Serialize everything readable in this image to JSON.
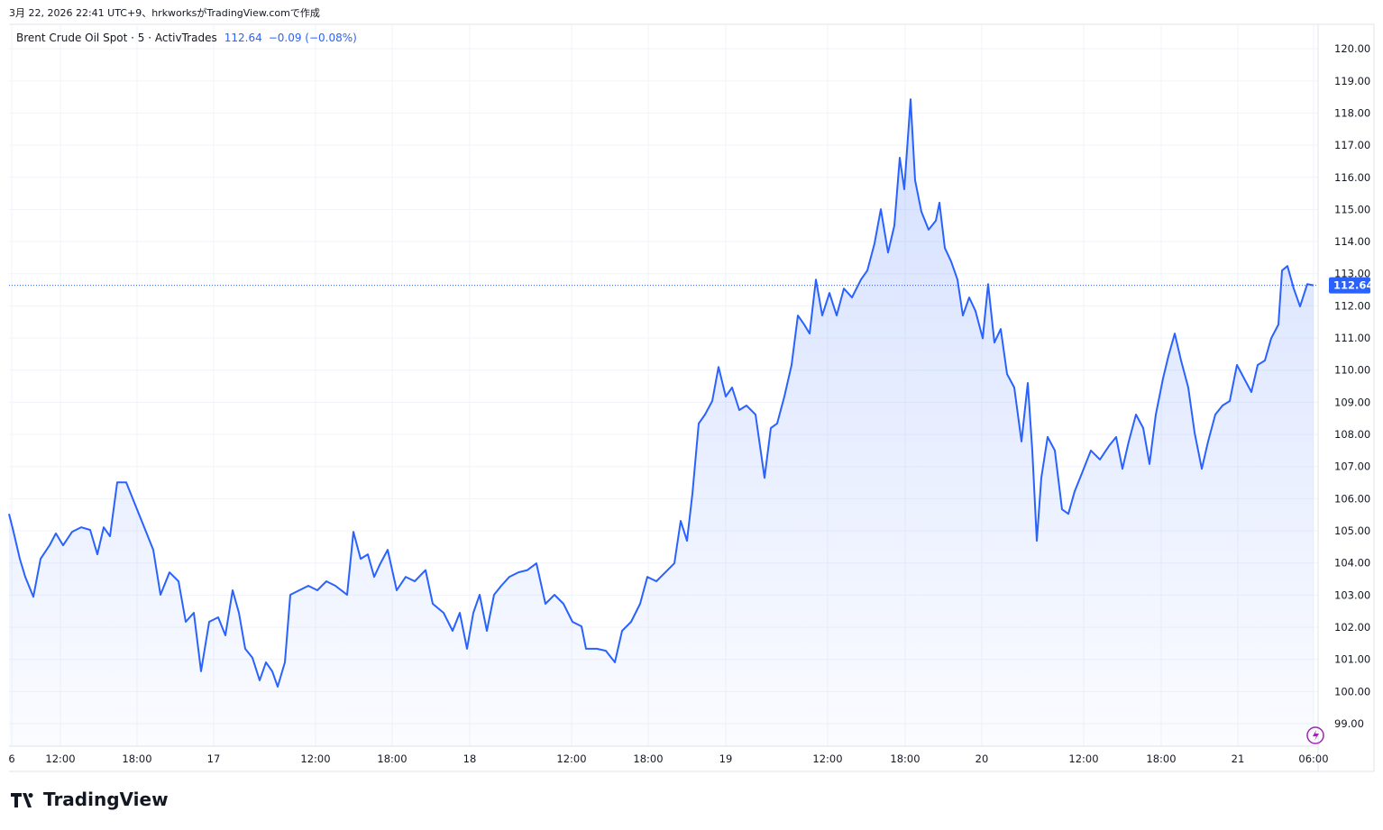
{
  "chart_data": {
    "type": "area",
    "header": "3月 22, 2026 22:41 UTC+9、hrkworksがTradingView.comで作成",
    "title": "Brent Crude Oil Spot · 5 · ActivTrades",
    "last_price": 112.64,
    "change": "−0.09 (−0.08%)",
    "logo": "TradingView",
    "color": "#2962ff",
    "grid": true,
    "x": [
      10,
      15,
      22,
      28,
      37,
      45,
      55,
      62,
      70,
      80,
      90,
      100,
      108,
      115,
      122,
      130,
      140,
      150,
      160,
      170,
      178,
      188,
      198,
      206,
      215,
      223,
      232,
      242,
      250,
      258,
      265,
      272,
      280,
      288,
      295,
      302,
      308,
      316,
      322,
      332,
      342,
      352,
      362,
      372,
      385,
      392,
      400,
      408,
      415,
      422,
      430,
      440,
      450,
      460,
      472,
      480,
      492,
      502,
      510,
      518,
      525,
      532,
      540,
      548,
      556,
      565,
      575,
      585,
      595,
      605,
      615,
      625,
      635,
      645,
      650,
      662,
      672,
      682,
      690,
      700,
      710,
      718,
      728,
      738,
      748,
      755,
      762,
      768,
      775,
      782,
      790,
      797,
      805,
      812,
      820,
      828,
      838,
      848,
      855,
      862,
      870,
      878,
      885,
      892,
      898,
      905,
      912,
      920,
      928,
      936,
      945,
      955,
      962,
      970,
      977,
      985,
      992,
      998,
      1003,
      1010,
      1015,
      1022,
      1030,
      1038,
      1042,
      1048,
      1055,
      1062,
      1068,
      1075,
      1082,
      1090,
      1096,
      1103,
      1110,
      1117,
      1125,
      1133,
      1140,
      1145,
      1150,
      1155,
      1162,
      1170,
      1178,
      1185,
      1192,
      1200,
      1210,
      1220,
      1230,
      1238,
      1245,
      1252,
      1260,
      1268,
      1275,
      1282,
      1290,
      1296,
      1303,
      1310,
      1318,
      1325,
      1333,
      1340,
      1348,
      1356,
      1364,
      1372,
      1380,
      1388,
      1395,
      1403,
      1410,
      1418,
      1422,
      1428,
      1435,
      1442,
      1450,
      1457
    ],
    "values": [
      105.53,
      104.97,
      104.13,
      103.57,
      102.95,
      104.13,
      104.55,
      104.92,
      104.55,
      104.97,
      105.11,
      105.03,
      104.27,
      105.11,
      104.83,
      106.51,
      106.51,
      105.81,
      105.11,
      104.41,
      103.01,
      103.71,
      103.43,
      102.17,
      102.45,
      100.63,
      102.17,
      102.31,
      101.75,
      103.15,
      102.45,
      101.33,
      101.05,
      100.35,
      100.91,
      100.63,
      100.15,
      100.91,
      103.01,
      103.15,
      103.29,
      103.15,
      103.43,
      103.29,
      103.01,
      104.97,
      104.13,
      104.27,
      103.57,
      103.99,
      104.41,
      103.15,
      103.57,
      103.43,
      103.78,
      102.73,
      102.45,
      101.89,
      102.45,
      101.33,
      102.45,
      103.01,
      101.89,
      103.01,
      103.29,
      103.57,
      103.71,
      103.78,
      103.99,
      102.73,
      103.01,
      102.73,
      102.17,
      102.03,
      101.33,
      101.33,
      101.27,
      100.91,
      101.89,
      102.17,
      102.73,
      103.57,
      103.43,
      103.71,
      103.99,
      105.31,
      104.69,
      106.15,
      108.34,
      108.62,
      109.04,
      110.1,
      109.18,
      109.46,
      108.76,
      108.9,
      108.62,
      106.65,
      108.2,
      108.34,
      109.18,
      110.16,
      111.7,
      111.42,
      111.14,
      112.82,
      111.7,
      112.4,
      111.7,
      112.54,
      112.26,
      112.82,
      113.1,
      113.94,
      115.01,
      113.66,
      114.5,
      116.61,
      115.63,
      118.43,
      115.91,
      114.93,
      114.37,
      114.65,
      115.21,
      113.8,
      113.38,
      112.82,
      111.7,
      112.26,
      111.84,
      110.99,
      112.68,
      110.86,
      111.28,
      109.88,
      109.46,
      107.78,
      109.6,
      107.5,
      104.69,
      106.65,
      107.92,
      107.5,
      105.67,
      105.53,
      106.23,
      106.79,
      107.5,
      107.22,
      107.64,
      107.92,
      106.93,
      107.78,
      108.62,
      108.2,
      107.08,
      108.62,
      109.74,
      110.44,
      111.14,
      110.3,
      109.46,
      108.06,
      106.93,
      107.78,
      108.62,
      108.9,
      109.04,
      110.16,
      109.74,
      109.32,
      110.16,
      110.3,
      110.99,
      111.42,
      113.1,
      113.24,
      112.54,
      111.98,
      112.68,
      112.64
    ],
    "xlim": [
      10,
      1462
    ],
    "xticks": [
      {
        "value": 13,
        "label": "6"
      },
      {
        "value": 67,
        "label": "12:00"
      },
      {
        "value": 152,
        "label": "18:00"
      },
      {
        "value": 237,
        "label": "17"
      },
      {
        "value": 350,
        "label": "12:00"
      },
      {
        "value": 435,
        "label": "18:00"
      },
      {
        "value": 521,
        "label": "18"
      },
      {
        "value": 634,
        "label": "12:00"
      },
      {
        "value": 719,
        "label": "18:00"
      },
      {
        "value": 805,
        "label": "19"
      },
      {
        "value": 918,
        "label": "12:00"
      },
      {
        "value": 1004,
        "label": "18:00"
      },
      {
        "value": 1089,
        "label": "20"
      },
      {
        "value": 1202,
        "label": "12:00"
      },
      {
        "value": 1288,
        "label": "18:00"
      },
      {
        "value": 1373,
        "label": "21"
      },
      {
        "value": 1457,
        "label": "06:00"
      }
    ],
    "ylim": [
      98.3,
      120.76
    ],
    "yticks": [
      {
        "value": 99,
        "label": "99.00"
      },
      {
        "value": 100,
        "label": "100.00"
      },
      {
        "value": 101,
        "label": "101.00"
      },
      {
        "value": 102,
        "label": "102.00"
      },
      {
        "value": 103,
        "label": "103.00"
      },
      {
        "value": 104,
        "label": "104.00"
      },
      {
        "value": 105,
        "label": "105.00"
      },
      {
        "value": 106,
        "label": "106.00"
      },
      {
        "value": 107,
        "label": "107.00"
      },
      {
        "value": 108,
        "label": "108.00"
      },
      {
        "value": 109,
        "label": "109.00"
      },
      {
        "value": 110,
        "label": "110.00"
      },
      {
        "value": 111,
        "label": "111.00"
      },
      {
        "value": 112,
        "label": "112.00"
      },
      {
        "value": 113,
        "label": "113.00"
      },
      {
        "value": 114,
        "label": "114.00"
      },
      {
        "value": 115,
        "label": "115.00"
      },
      {
        "value": 116,
        "label": "116.00"
      },
      {
        "value": 117,
        "label": "117.00"
      },
      {
        "value": 118,
        "label": "118.00"
      },
      {
        "value": 119,
        "label": "119.00"
      },
      {
        "value": 120,
        "label": "120.00"
      }
    ]
  }
}
